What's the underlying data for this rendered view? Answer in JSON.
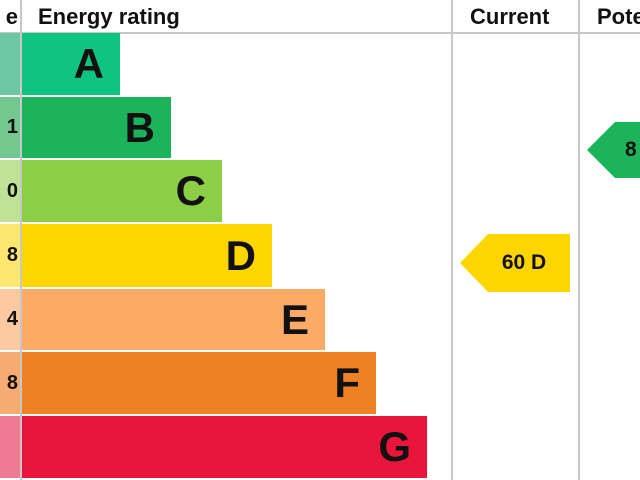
{
  "chart_data": {
    "type": "bar",
    "headers": {
      "score": "e",
      "rating": "Energy rating",
      "current": "Current",
      "potential": "Pote"
    },
    "bands": [
      {
        "letter": "A",
        "score": "",
        "color": "#0ec47f",
        "light": "#6cc7a6"
      },
      {
        "letter": "B",
        "score": "1",
        "color": "#1bb45a",
        "light": "#72c88e"
      },
      {
        "letter": "C",
        "score": "0",
        "color": "#8ccf47",
        "light": "#bfe296"
      },
      {
        "letter": "D",
        "score": "8",
        "color": "#ffd500",
        "light": "#fde76e"
      },
      {
        "letter": "E",
        "score": "4",
        "color": "#fcaa66",
        "light": "#fcc9a0"
      },
      {
        "letter": "F",
        "score": "8",
        "color": "#ef8125",
        "light": "#f5ab72"
      },
      {
        "letter": "G",
        "score": "",
        "color": "#e9153b",
        "light": "#f07a94"
      }
    ],
    "current": {
      "value": 60,
      "band": "D",
      "label": "60 D",
      "color": "#ffd500"
    },
    "potential": {
      "band": "B",
      "label": "8",
      "color": "#1bb45a"
    }
  }
}
